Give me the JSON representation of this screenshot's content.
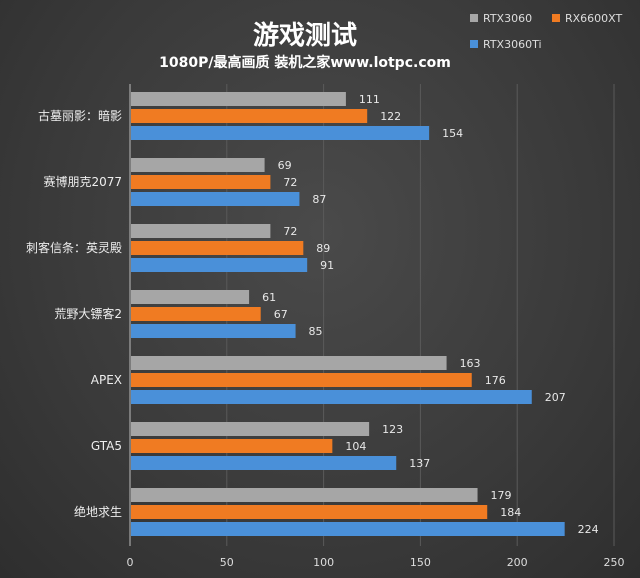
{
  "chart_data": {
    "type": "bar",
    "orientation": "horizontal",
    "title": "游戏测试",
    "subtitle": "1080P/最高画质  装机之家www.lotpc.com",
    "categories": [
      "古墓丽影：暗影",
      "赛博朋克2077",
      "刺客信条：英灵殿",
      "荒野大镖客2",
      "APEX",
      "GTA5",
      "绝地求生"
    ],
    "series": [
      {
        "name": "RTX3060",
        "color": "#a6a6a6",
        "values": [
          111,
          69,
          72,
          61,
          163,
          123,
          179
        ]
      },
      {
        "name": "RX6600XT",
        "color": "#f07b22",
        "values": [
          122,
          72,
          89,
          67,
          176,
          104,
          184
        ]
      },
      {
        "name": "RTX3060Ti",
        "color": "#4a90d9",
        "values": [
          154,
          87,
          91,
          85,
          207,
          137,
          224
        ]
      }
    ],
    "xlim": [
      0,
      250
    ],
    "xticks": [
      "0",
      "50",
      "100",
      "150",
      "200",
      "250"
    ],
    "grid": true,
    "legend": "top-right",
    "watermark": "装机之家 www.lotpc.com"
  }
}
